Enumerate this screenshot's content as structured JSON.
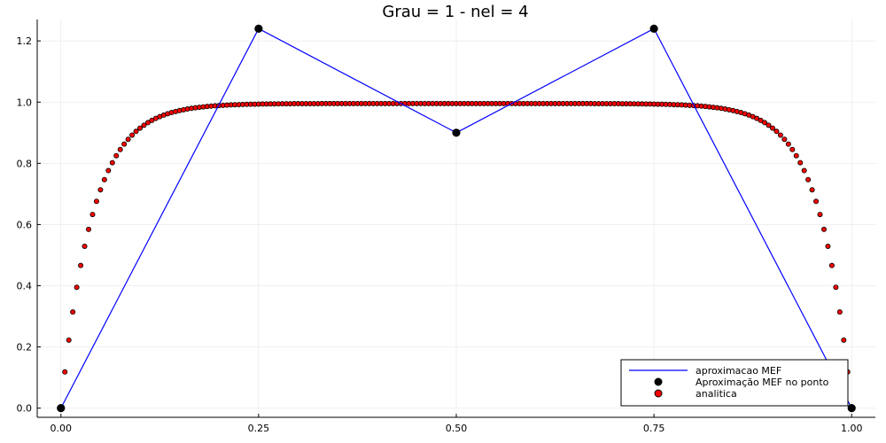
{
  "chart_data": {
    "type": "line",
    "title": "Grau = 1 - nel = 4",
    "xlabel": "",
    "ylabel": "",
    "xlim": [
      -0.03,
      1.03
    ],
    "ylim": [
      -0.03,
      1.27
    ],
    "xticks": [
      0.0,
      0.25,
      0.5,
      0.75,
      1.0
    ],
    "xtick_labels": [
      "0.00",
      "0.25",
      "0.50",
      "0.75",
      "1.00"
    ],
    "yticks": [
      0.0,
      0.2,
      0.4,
      0.6,
      0.8,
      1.0,
      1.2
    ],
    "ytick_labels": [
      "0.0",
      "0.2",
      "0.4",
      "0.6",
      "0.8",
      "1.0",
      "1.2"
    ],
    "grid": true,
    "legend_position": "bottom-right",
    "series": [
      {
        "name": "aproximacao MEF",
        "kind": "line",
        "color": "#0000ff",
        "x": [
          0.0,
          0.25,
          0.5,
          0.75,
          1.0
        ],
        "y": [
          0.0,
          1.24,
          0.9,
          1.24,
          0.0
        ]
      },
      {
        "name": "Aproximação MEF no ponto",
        "kind": "scatter",
        "color": "#000000",
        "x": [
          0.0,
          0.25,
          0.5,
          0.75,
          1.0
        ],
        "y": [
          0.0,
          1.24,
          0.9,
          1.24,
          0.0
        ]
      },
      {
        "name": "analitica",
        "kind": "scatter",
        "color": "#ff0000",
        "edge_color": "#000000",
        "x": [
          0,
          0.005,
          0.01,
          0.015,
          0.02,
          0.025,
          0.03,
          0.035,
          0.04,
          0.045,
          0.05,
          0.055,
          0.06,
          0.065,
          0.07,
          0.075,
          0.08,
          0.085,
          0.09,
          0.095,
          0.1,
          0.105,
          0.11,
          0.115,
          0.12,
          0.125,
          0.13,
          0.135,
          0.14,
          0.145,
          0.15,
          0.155,
          0.16,
          0.165,
          0.17,
          0.175,
          0.18,
          0.185,
          0.19,
          0.195,
          0.2,
          0.205,
          0.21,
          0.215,
          0.22,
          0.225,
          0.23,
          0.235,
          0.24,
          0.245,
          0.25,
          0.255,
          0.26,
          0.265,
          0.27,
          0.275,
          0.28,
          0.285,
          0.29,
          0.295,
          0.3,
          0.305,
          0.31,
          0.315,
          0.32,
          0.325,
          0.33,
          0.335,
          0.34,
          0.345,
          0.35,
          0.355,
          0.36,
          0.365,
          0.37,
          0.375,
          0.38,
          0.385,
          0.39,
          0.395,
          0.4,
          0.405,
          0.41,
          0.415,
          0.42,
          0.425,
          0.43,
          0.435,
          0.44,
          0.445,
          0.45,
          0.455,
          0.46,
          0.465,
          0.47,
          0.475,
          0.48,
          0.485,
          0.49,
          0.495,
          0.5,
          0.505,
          0.51,
          0.515,
          0.52,
          0.525,
          0.53,
          0.535,
          0.54,
          0.545,
          0.55,
          0.555,
          0.56,
          0.565,
          0.57,
          0.575,
          0.58,
          0.585,
          0.59,
          0.595,
          0.6,
          0.605,
          0.61,
          0.615,
          0.62,
          0.625,
          0.63,
          0.635,
          0.64,
          0.645,
          0.65,
          0.655,
          0.66,
          0.665,
          0.67,
          0.675,
          0.68,
          0.685,
          0.69,
          0.695,
          0.7,
          0.705,
          0.71,
          0.715,
          0.72,
          0.725,
          0.73,
          0.735,
          0.74,
          0.745,
          0.75,
          0.755,
          0.76,
          0.765,
          0.77,
          0.775,
          0.78,
          0.785,
          0.79,
          0.795,
          0.8,
          0.805,
          0.81,
          0.815,
          0.82,
          0.825,
          0.83,
          0.835,
          0.84,
          0.845,
          0.85,
          0.855,
          0.86,
          0.865,
          0.87,
          0.875,
          0.88,
          0.885,
          0.89,
          0.895,
          0.9,
          0.905,
          0.91,
          0.915,
          0.92,
          0.925,
          0.93,
          0.935,
          0.94,
          0.945,
          0.95,
          0.955,
          0.96,
          0.965,
          0.97,
          0.975,
          0.98,
          0.985,
          0.99,
          0.995,
          1
        ],
        "y": [
          0,
          0.1183,
          0.2224,
          0.3141,
          0.3949,
          0.4661,
          0.5288,
          0.5841,
          0.6328,
          0.6757,
          0.7135,
          0.7468,
          0.7762,
          0.8021,
          0.8249,
          0.845,
          0.8628,
          0.8784,
          0.8922,
          0.9043,
          0.9151,
          0.9245,
          0.9329,
          0.9402,
          0.9467,
          0.9525,
          0.9575,
          0.962,
          0.9659,
          0.9694,
          0.9724,
          0.9751,
          0.9775,
          0.9796,
          0.9815,
          0.9831,
          0.9845,
          0.9858,
          0.9869,
          0.9879,
          0.9888,
          0.9895,
          0.9902,
          0.9908,
          0.9914,
          0.9918,
          0.9923,
          0.9926,
          0.993,
          0.9932,
          0.9935,
          0.9937,
          0.9939,
          0.9941,
          0.9943,
          0.9944,
          0.9945,
          0.9946,
          0.9947,
          0.9948,
          0.9949,
          0.995,
          0.995,
          0.9951,
          0.9951,
          0.9951,
          0.9952,
          0.9952,
          0.9952,
          0.9952,
          0.9953,
          0.9953,
          0.9953,
          0.9953,
          0.9953,
          0.9953,
          0.9953,
          0.9953,
          0.9953,
          0.9953,
          0.9953,
          0.9953,
          0.9953,
          0.9953,
          0.9953,
          0.9953,
          0.9953,
          0.9953,
          0.9953,
          0.9953,
          0.9953,
          0.9953,
          0.9953,
          0.9953,
          0.9953,
          0.9953,
          0.9953,
          0.9953,
          0.9953,
          0.9953,
          0.9953,
          0.9953,
          0.9953,
          0.9953,
          0.9953,
          0.9953,
          0.9953,
          0.9953,
          0.9953,
          0.9953,
          0.9953,
          0.9953,
          0.9953,
          0.9953,
          0.9953,
          0.9953,
          0.9953,
          0.9953,
          0.9953,
          0.9953,
          0.9953,
          0.9953,
          0.9953,
          0.9953,
          0.9953,
          0.9953,
          0.9953,
          0.9953,
          0.9953,
          0.9953,
          0.9953,
          0.9952,
          0.9952,
          0.9952,
          0.9952,
          0.9951,
          0.9951,
          0.9951,
          0.995,
          0.995,
          0.9949,
          0.9948,
          0.9947,
          0.9946,
          0.9945,
          0.9944,
          0.9943,
          0.9941,
          0.9939,
          0.9937,
          0.9935,
          0.9932,
          0.993,
          0.9926,
          0.9923,
          0.9918,
          0.9914,
          0.9908,
          0.9902,
          0.9895,
          0.9888,
          0.9879,
          0.9869,
          0.9858,
          0.9845,
          0.9831,
          0.9815,
          0.9796,
          0.9775,
          0.9751,
          0.9724,
          0.9694,
          0.9659,
          0.962,
          0.9575,
          0.9525,
          0.9467,
          0.9402,
          0.9329,
          0.9245,
          0.9151,
          0.9043,
          0.8922,
          0.8784,
          0.8628,
          0.845,
          0.8249,
          0.8021,
          0.7762,
          0.7468,
          0.7135,
          0.6757,
          0.6328,
          0.5841,
          0.5288,
          0.4661,
          0.3949,
          0.3141,
          0.2224,
          0.1183,
          0
        ]
      }
    ]
  }
}
